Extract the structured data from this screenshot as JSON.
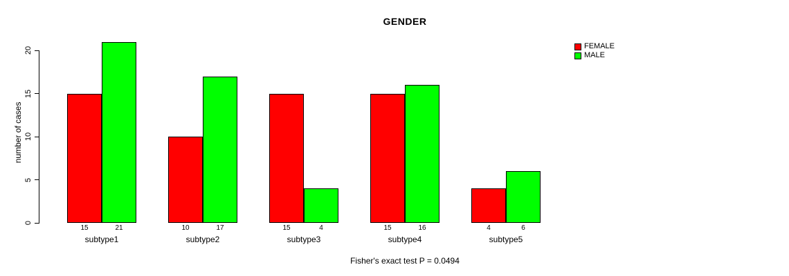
{
  "chart_data": {
    "type": "bar",
    "title": "GENDER",
    "ylabel": "number of cases",
    "xlabel": "",
    "categories": [
      "subtype1",
      "subtype2",
      "subtype3",
      "subtype4",
      "subtype5"
    ],
    "series": [
      {
        "name": "FEMALE",
        "color": "#FF0000",
        "values": [
          15,
          10,
          15,
          15,
          4
        ]
      },
      {
        "name": "MALE",
        "color": "#00FF00",
        "values": [
          21,
          17,
          4,
          16,
          6
        ]
      }
    ],
    "y_ticks": [
      0,
      5,
      10,
      15,
      20
    ],
    "ylim": [
      0,
      20
    ],
    "grid": false,
    "legend_position": "top-right",
    "bar_border_color": "#000000",
    "text_color": "#000000",
    "background_color": "#FFFFFF",
    "annotation": "Fisher's exact test P = 0.0494"
  }
}
